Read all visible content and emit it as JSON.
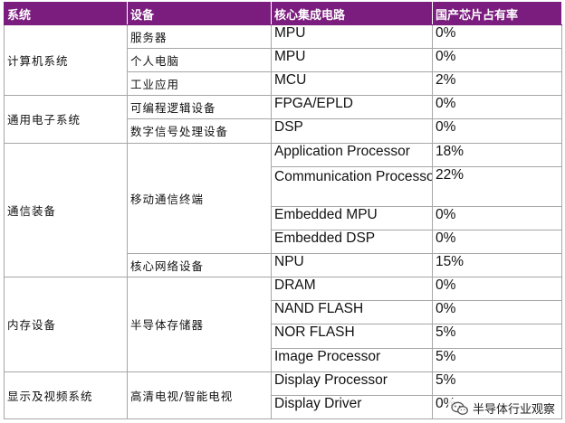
{
  "header": {
    "system": "系统",
    "device": "设备",
    "circuit": "核心集成电路",
    "rate": "国产芯片占有率"
  },
  "rows": [
    {
      "circuit": "MPU",
      "rate": "0%"
    },
    {
      "circuit": "MPU",
      "rate": "0%"
    },
    {
      "circuit": "MCU",
      "rate": "2%"
    },
    {
      "circuit": "FPGA/EPLD",
      "rate": "0%"
    },
    {
      "circuit": "DSP",
      "rate": "0%"
    },
    {
      "circuit": "Application Processor",
      "rate": "18%"
    },
    {
      "circuit": "Communication Processor",
      "rate": "22%"
    },
    {
      "circuit": "Embedded MPU",
      "rate": "0%"
    },
    {
      "circuit": "Embedded DSP",
      "rate": "0%"
    },
    {
      "circuit": "NPU",
      "rate": "15%"
    },
    {
      "circuit": "DRAM",
      "rate": "0%"
    },
    {
      "circuit": "NAND FLASH",
      "rate": "0%"
    },
    {
      "circuit": "NOR FLASH",
      "rate": "5%"
    },
    {
      "circuit": "Image Processor",
      "rate": "5%"
    },
    {
      "circuit": "Display Processor",
      "rate": "5%"
    },
    {
      "circuit": "Display Driver",
      "rate": "0%"
    }
  ],
  "systems": [
    "计算机系统",
    "通用电子系统",
    "通信装备",
    "内存设备",
    "显示及视频系统"
  ],
  "devices": [
    "服务器",
    "个人电脑",
    "工业应用",
    "可编程逻辑设备",
    "数字信号处理设备",
    "移动通信终端",
    "核心网络设备",
    "半导体存储器",
    "高清电视/智能电视"
  ],
  "watermark": {
    "icon": "wechat-icon",
    "text": "半导体行业观察"
  }
}
